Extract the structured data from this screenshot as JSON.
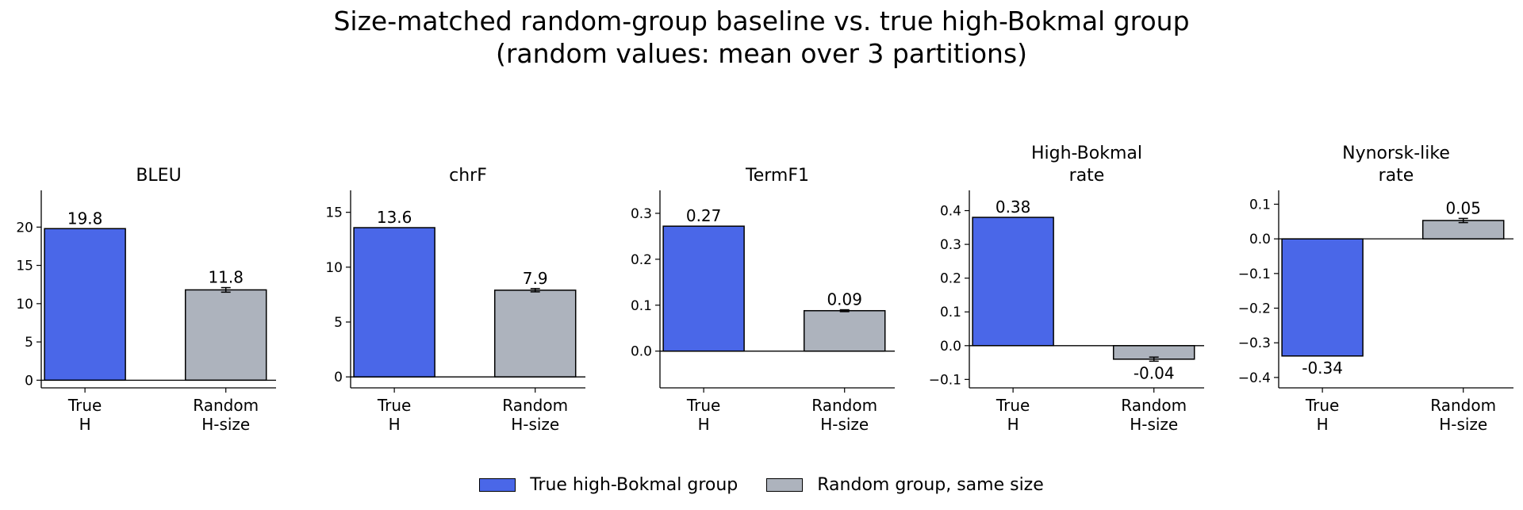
{
  "figure": {
    "title_line1": "Size-matched random-group baseline vs. true high-Bokmal group",
    "title_line2": "(random values: mean over 3 partitions)"
  },
  "colors": {
    "true_group": "#4a67e8",
    "random_group": "#adb3bd",
    "edge": "#000000"
  },
  "legend": {
    "true_label": "True high-Bokmal group",
    "random_label": "Random group, same size",
    "placement": "bottom-center"
  },
  "chart_data": [
    {
      "type": "bar",
      "title_lines": [
        "BLEU"
      ],
      "categories": [
        [
          "True",
          "H"
        ],
        [
          "Random",
          "H-size"
        ]
      ],
      "values": [
        19.8,
        11.8
      ],
      "errors": [
        0,
        0.3
      ],
      "value_labels": [
        "19.8",
        "11.8"
      ],
      "ylim": [
        -1.0,
        24.8
      ],
      "yticks": [
        0,
        5,
        10,
        15,
        20
      ],
      "ytick_labels": [
        "0",
        "5",
        "10",
        "15",
        "20"
      ]
    },
    {
      "type": "bar",
      "title_lines": [
        "chrF"
      ],
      "categories": [
        [
          "True",
          "H"
        ],
        [
          "Random",
          "H-size"
        ]
      ],
      "values": [
        13.6,
        7.9
      ],
      "errors": [
        0,
        0.15
      ],
      "value_labels": [
        "13.6",
        "7.9"
      ],
      "ylim": [
        -1.0,
        17.0
      ],
      "yticks": [
        0,
        5,
        10,
        15
      ],
      "ytick_labels": [
        "0",
        "5",
        "10",
        "15"
      ]
    },
    {
      "type": "bar",
      "title_lines": [
        "TermF1"
      ],
      "categories": [
        [
          "True",
          "H"
        ],
        [
          "Random",
          "H-size"
        ]
      ],
      "values": [
        0.272,
        0.088
      ],
      "errors": [
        0,
        0.002
      ],
      "value_labels": [
        "0.27",
        "0.09"
      ],
      "ylim": [
        -0.08,
        0.35
      ],
      "yticks": [
        0.0,
        0.1,
        0.2,
        0.3
      ],
      "ytick_labels": [
        "0.0",
        "0.1",
        "0.2",
        "0.3"
      ]
    },
    {
      "type": "bar",
      "title_lines": [
        "High-Bokmal",
        "rate"
      ],
      "categories": [
        [
          "True",
          "H"
        ],
        [
          "Random",
          "H-size"
        ]
      ],
      "values": [
        0.38,
        -0.04
      ],
      "errors": [
        0,
        0.006
      ],
      "value_labels": [
        "0.38",
        "-0.04"
      ],
      "ylim": [
        -0.125,
        0.46
      ],
      "yticks": [
        -0.1,
        0.0,
        0.1,
        0.2,
        0.3,
        0.4
      ],
      "ytick_labels": [
        "−0.1",
        "0.0",
        "0.1",
        "0.2",
        "0.3",
        "0.4"
      ]
    },
    {
      "type": "bar",
      "title_lines": [
        "Nynorsk-like",
        "rate"
      ],
      "categories": [
        [
          "True",
          "H"
        ],
        [
          "Random",
          "H-size"
        ]
      ],
      "values": [
        -0.338,
        0.053
      ],
      "errors": [
        0,
        0.006
      ],
      "value_labels": [
        "-0.34",
        "0.05"
      ],
      "ylim": [
        -0.43,
        0.14
      ],
      "yticks": [
        -0.4,
        -0.3,
        -0.2,
        -0.1,
        0.0,
        0.1
      ],
      "ytick_labels": [
        "−0.4",
        "−0.3",
        "−0.2",
        "−0.1",
        "0.0",
        "0.1"
      ]
    }
  ]
}
